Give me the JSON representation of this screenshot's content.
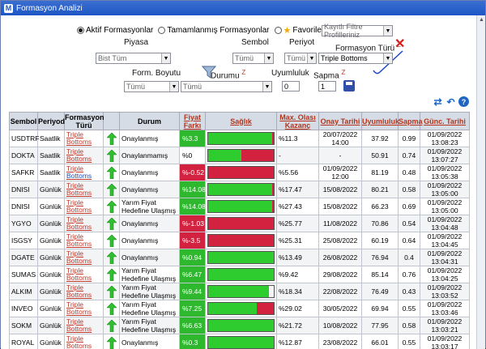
{
  "window": {
    "title": "Formasyon Analizi",
    "icon_letter": "M"
  },
  "filter": {
    "radios": [
      {
        "label": "Aktif Formasyonlar",
        "checked": true
      },
      {
        "label": "Tamamlanmış Formasyonlar",
        "checked": false
      },
      {
        "label": "Favoriler",
        "checked": false
      }
    ],
    "profile_select": "Kayıtlı Filtre Profilleriniz",
    "piyasa_label": "Piyasa",
    "piyasa_value": "Bist Tüm",
    "sembol_label": "Sembol",
    "sembol_value": "Tümü",
    "periyot_label": "Periyot",
    "periyot_value": "Tümü",
    "formasyon_turu_label": "Formasyon Türü",
    "formasyon_turu_value": "Triple Bottoms",
    "form_boyutu_label": "Form. Boyutu",
    "form_boyutu_value": "Tümü",
    "durumu_label": "Durumu",
    "durumu_value": "Tümü",
    "uyumluluk_label": "Uyumluluk",
    "uyumluluk_value": "0",
    "sapma_label": "Sapma",
    "sapma_value": "1",
    "z_mark": "Z"
  },
  "table": {
    "headers": {
      "sembol": "Sembol",
      "periyod": "Periyod",
      "formasyon_turu": "Formasyon Türü",
      "durum": "Durum",
      "fiyat_farki": "Fiyat Farkı",
      "saglik": "Sağlık",
      "max_olasi": "Max. Olası Kazanç",
      "onay_tarihi": "Onay Tarihi",
      "uyumluluk": "Uyumluluk",
      "sapma": "Sapma",
      "gunc_tarihi": "Günc. Tarihi"
    },
    "formation_top": "Triple",
    "formation_bottom": "Bottoms",
    "rows": [
      {
        "sembol": "USDTRF",
        "periyod": "Saatlik",
        "durum": "Onaylanmış",
        "fark": "%3.3",
        "fark_sign": "pos",
        "green": 0.97,
        "white": 0.0,
        "max": "%11.3",
        "onay": "20/07/2022 14:00",
        "uyum": "37.92",
        "sapma": "0.99",
        "gunc": "01/09/2022 13:08:23"
      },
      {
        "sembol": "DOKTA",
        "periyod": "Saatlik",
        "durum": "Onaylanmamış",
        "fark": "%0",
        "fark_sign": "neu",
        "green": 0.5,
        "white": 0.0,
        "max": "-",
        "onay": "-",
        "uyum": "50.91",
        "sapma": "0.74",
        "gunc": "01/09/2022 13:07:27"
      },
      {
        "sembol": "SAFKR",
        "periyod": "Saatlik",
        "durum": "Onaylanmış",
        "fark": "%-0.52",
        "fark_sign": "neg",
        "green": 0.0,
        "white": 0.0,
        "max": "%5.56",
        "onay": "01/09/2022 12:00",
        "uyum": "81.19",
        "sapma": "0.48",
        "gunc": "01/09/2022 13:05:38"
      },
      {
        "sembol": "DNISI",
        "periyod": "Günlük",
        "durum": "Onaylanmış",
        "fark": "%14.08",
        "fark_sign": "pos",
        "green": 0.97,
        "white": 0.0,
        "max": "%17.47",
        "onay": "15/08/2022",
        "uyum": "80.21",
        "sapma": "0.58",
        "gunc": "01/09/2022 13:05:00"
      },
      {
        "sembol": "DNISI",
        "periyod": "Günlük",
        "durum": "Yarım Fiyat Hedefine Ulaşmış",
        "fark": "%14.08",
        "fark_sign": "pos",
        "green": 0.97,
        "white": 0.0,
        "max": "%27.43",
        "onay": "15/08/2022",
        "uyum": "66.23",
        "sapma": "0.69",
        "gunc": "01/09/2022 13:05:00"
      },
      {
        "sembol": "YGYO",
        "periyod": "Günlük",
        "durum": "Onaylanmış",
        "fark": "%-1.03",
        "fark_sign": "neg",
        "green": 0.0,
        "white": 0.0,
        "max": "%25.77",
        "onay": "11/08/2022",
        "uyum": "70.86",
        "sapma": "0.54",
        "gunc": "01/09/2022 13:04:48"
      },
      {
        "sembol": "ISGSY",
        "periyod": "Günlük",
        "durum": "Onaylanmış",
        "fark": "%-3.5",
        "fark_sign": "neg",
        "green": 0.0,
        "white": 0.0,
        "max": "%25.31",
        "onay": "25/08/2022",
        "uyum": "60.19",
        "sapma": "0.64",
        "gunc": "01/09/2022 13:04:45"
      },
      {
        "sembol": "DGATE",
        "periyod": "Günlük",
        "durum": "Onaylanmış",
        "fark": "%0.94",
        "fark_sign": "pos",
        "green": 1.0,
        "white": 0.0,
        "max": "%13.49",
        "onay": "26/08/2022",
        "uyum": "76.94",
        "sapma": "0.4",
        "gunc": "01/09/2022 13:04:31"
      },
      {
        "sembol": "SUMAS",
        "periyod": "Günlük",
        "durum": "Yarım Fiyat Hedefine Ulaşmış",
        "fark": "%6.47",
        "fark_sign": "pos",
        "green": 1.0,
        "white": 0.0,
        "max": "%9.42",
        "onay": "29/08/2022",
        "uyum": "85.14",
        "sapma": "0.76",
        "gunc": "01/09/2022 13:04:25"
      },
      {
        "sembol": "ALKIM",
        "periyod": "Günlük",
        "durum": "Yarım Fiyat Hedefine Ulaşmış",
        "fark": "%9.44",
        "fark_sign": "pos",
        "green": 0.93,
        "white": 0.07,
        "max": "%18.34",
        "onay": "22/08/2022",
        "uyum": "76.49",
        "sapma": "0.43",
        "gunc": "01/09/2022 13:03:52"
      },
      {
        "sembol": "INVEO",
        "periyod": "Günlük",
        "durum": "Yarım Fiyat Hedefine Ulaşmış",
        "fark": "%7.25",
        "fark_sign": "pos",
        "green": 0.74,
        "white": 0.0,
        "max": "%29.02",
        "onay": "30/05/2022",
        "uyum": "69.94",
        "sapma": "0.55",
        "gunc": "01/09/2022 13:03:46"
      },
      {
        "sembol": "SOKM",
        "periyod": "Günlük",
        "durum": "Yarım Fiyat Hedefine Ulaşmış",
        "fark": "%6.63",
        "fark_sign": "pos",
        "green": 1.0,
        "white": 0.0,
        "max": "%21.72",
        "onay": "10/08/2022",
        "uyum": "77.95",
        "sapma": "0.58",
        "gunc": "01/09/2022 13:03:21"
      },
      {
        "sembol": "ROYAL",
        "periyod": "Günlük",
        "durum": "Onaylanmış",
        "fark": "%0.3",
        "fark_sign": "pos",
        "green": 1.0,
        "white": 0.0,
        "max": "%12.87",
        "onay": "23/08/2022",
        "uyum": "66.01",
        "sapma": "0.55",
        "gunc": "01/09/2022 13:03:17"
      }
    ]
  },
  "colors": {
    "titlebar": "#1d56c5",
    "green": "#2fcc2f",
    "red": "#d3223f",
    "header_link": "#b5341a"
  }
}
